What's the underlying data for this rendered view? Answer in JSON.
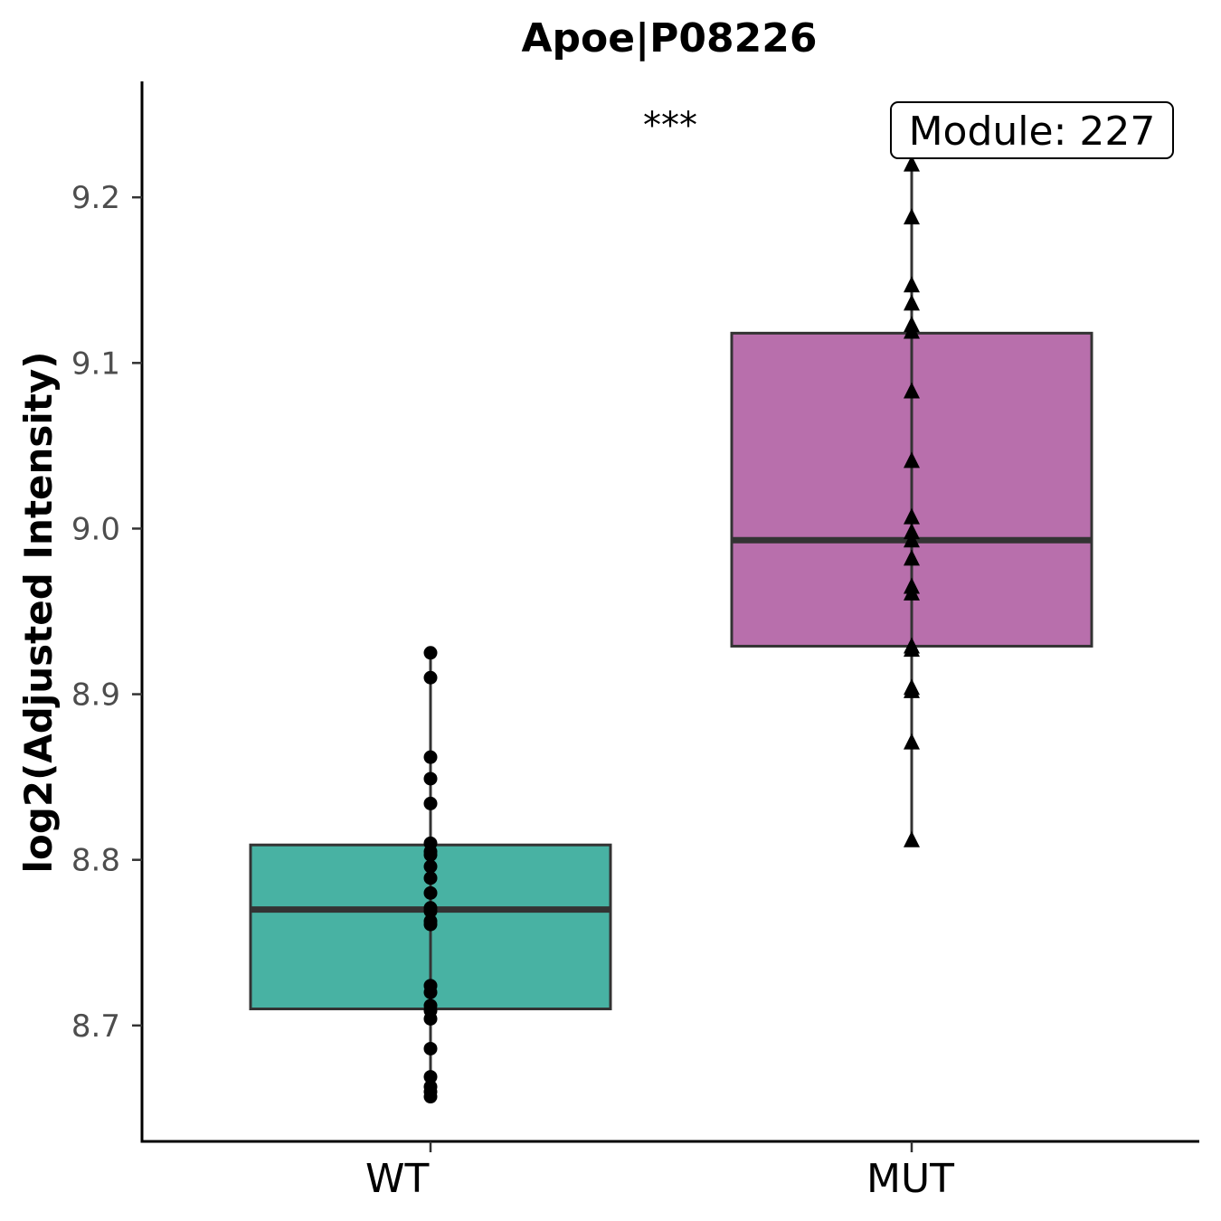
{
  "chart_data": {
    "type": "box",
    "title": "Apoe|P08226",
    "xlabel": "",
    "ylabel": "log2(Adjusted Intensity)",
    "ylim": [
      8.63,
      9.27
    ],
    "yticks": [
      "8.7",
      "8.8",
      "8.9",
      "9.0",
      "9.1",
      "9.2"
    ],
    "categories": [
      "WT",
      "MUT"
    ],
    "grid": false,
    "legend": "none",
    "significance_label": "***",
    "annotation": "Module: 227",
    "series": [
      {
        "category": "WT",
        "color": "#48b2a3",
        "marker": "circle",
        "box": {
          "whisker_low": 8.657,
          "q1": 8.71,
          "median": 8.77,
          "q3": 8.809,
          "whisker_high": 8.925
        },
        "points": [
          8.925,
          8.91,
          8.862,
          8.849,
          8.834,
          8.81,
          8.805,
          8.803,
          8.796,
          8.789,
          8.78,
          8.771,
          8.769,
          8.763,
          8.761,
          8.724,
          8.72,
          8.712,
          8.709,
          8.704,
          8.686,
          8.669,
          8.663,
          8.66,
          8.657
        ]
      },
      {
        "category": "MUT",
        "color": "#b86fac",
        "marker": "triangle",
        "box": {
          "whisker_low": 8.812,
          "q1": 8.929,
          "median": 8.993,
          "q3": 9.118,
          "whisker_high": 9.22
        },
        "points": [
          9.22,
          9.188,
          9.147,
          9.136,
          9.123,
          9.119,
          9.083,
          9.041,
          9.007,
          8.998,
          8.993,
          8.982,
          8.965,
          8.961,
          8.929,
          8.927,
          8.904,
          8.902,
          8.871,
          8.812
        ]
      }
    ]
  }
}
